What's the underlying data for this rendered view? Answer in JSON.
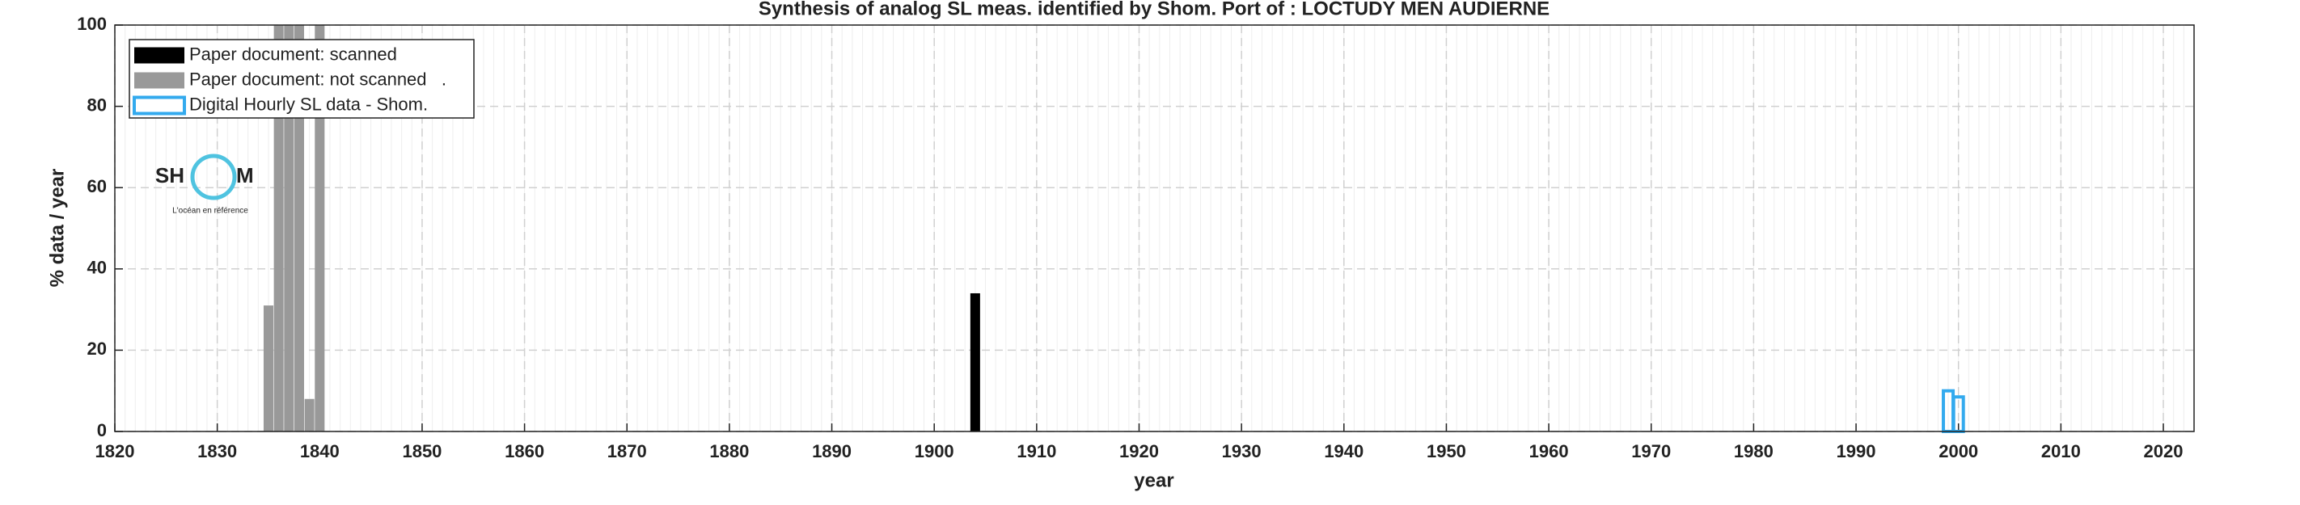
{
  "chart_data": {
    "type": "bar",
    "title": "Synthesis of analog SL meas. identified by Shom. Port of : LOCTUDY MEN AUDIERNE",
    "xlabel": "year",
    "ylabel": "% data / year",
    "xlim": [
      1820,
      2023
    ],
    "xticks": [
      1820,
      1830,
      1840,
      1850,
      1860,
      1870,
      1880,
      1890,
      1900,
      1910,
      1920,
      1930,
      1940,
      1950,
      1960,
      1970,
      1980,
      1990,
      2000,
      2010,
      2020
    ],
    "ylim": [
      0,
      100
    ],
    "yticks": [
      0,
      20,
      40,
      60,
      80,
      100
    ],
    "grid": true,
    "minor_grid": true,
    "legend": "top-left",
    "series": [
      {
        "name": "Paper document: scanned",
        "color": "#000000",
        "filled": true,
        "x": [
          1904
        ],
        "values": [
          34
        ]
      },
      {
        "name": "Paper document: not scanned   .",
        "color": "#999999",
        "filled": true,
        "x": [
          1835,
          1836,
          1837,
          1838,
          1839,
          1840
        ],
        "values": [
          31,
          100,
          100,
          100,
          8,
          100
        ]
      },
      {
        "name": "Digital Hourly SL data - Shom.",
        "color": "#33aaee",
        "filled": false,
        "x": [
          1999,
          2000
        ],
        "values": [
          10,
          8.5
        ]
      }
    ],
    "logo": {
      "left": "SH",
      "right": "M",
      "tagline": "L'océan en référence"
    }
  }
}
